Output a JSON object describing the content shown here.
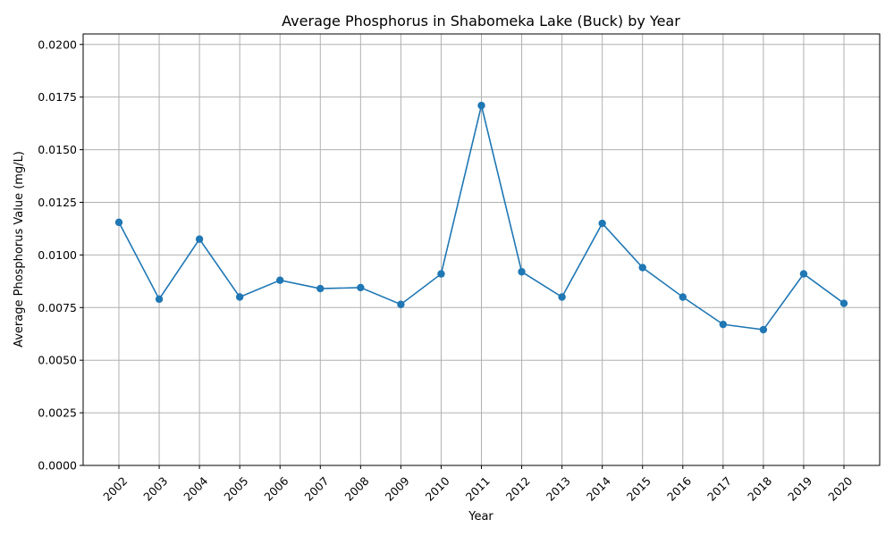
{
  "chart_data": {
    "type": "line",
    "title": "Average Phosphorus in Shabomeka Lake (Buck) by Year",
    "xlabel": "Year",
    "ylabel": "Average Phosphorus Value (mg/L)",
    "categories": [
      "2002",
      "2003",
      "2004",
      "2005",
      "2006",
      "2007",
      "2008",
      "2009",
      "2010",
      "2011",
      "2012",
      "2013",
      "2014",
      "2015",
      "2016",
      "2017",
      "2018",
      "2019",
      "2020"
    ],
    "series": [
      {
        "values": [
          0.01155,
          0.0079,
          0.01075,
          0.008,
          0.0088,
          0.0084,
          0.00845,
          0.00765,
          0.0091,
          0.0171,
          0.0092,
          0.008,
          0.0115,
          0.0094,
          0.008,
          0.0067,
          0.00645,
          0.0091,
          0.0077
        ],
        "color": "#1f77b4",
        "marker": "circle"
      }
    ],
    "ylim": [
      0,
      0.0205
    ],
    "yticks": [
      "0.0000",
      "0.0025",
      "0.0050",
      "0.0075",
      "0.0100",
      "0.0125",
      "0.0150",
      "0.0175",
      "0.0200"
    ],
    "grid": true,
    "legend": "none"
  }
}
